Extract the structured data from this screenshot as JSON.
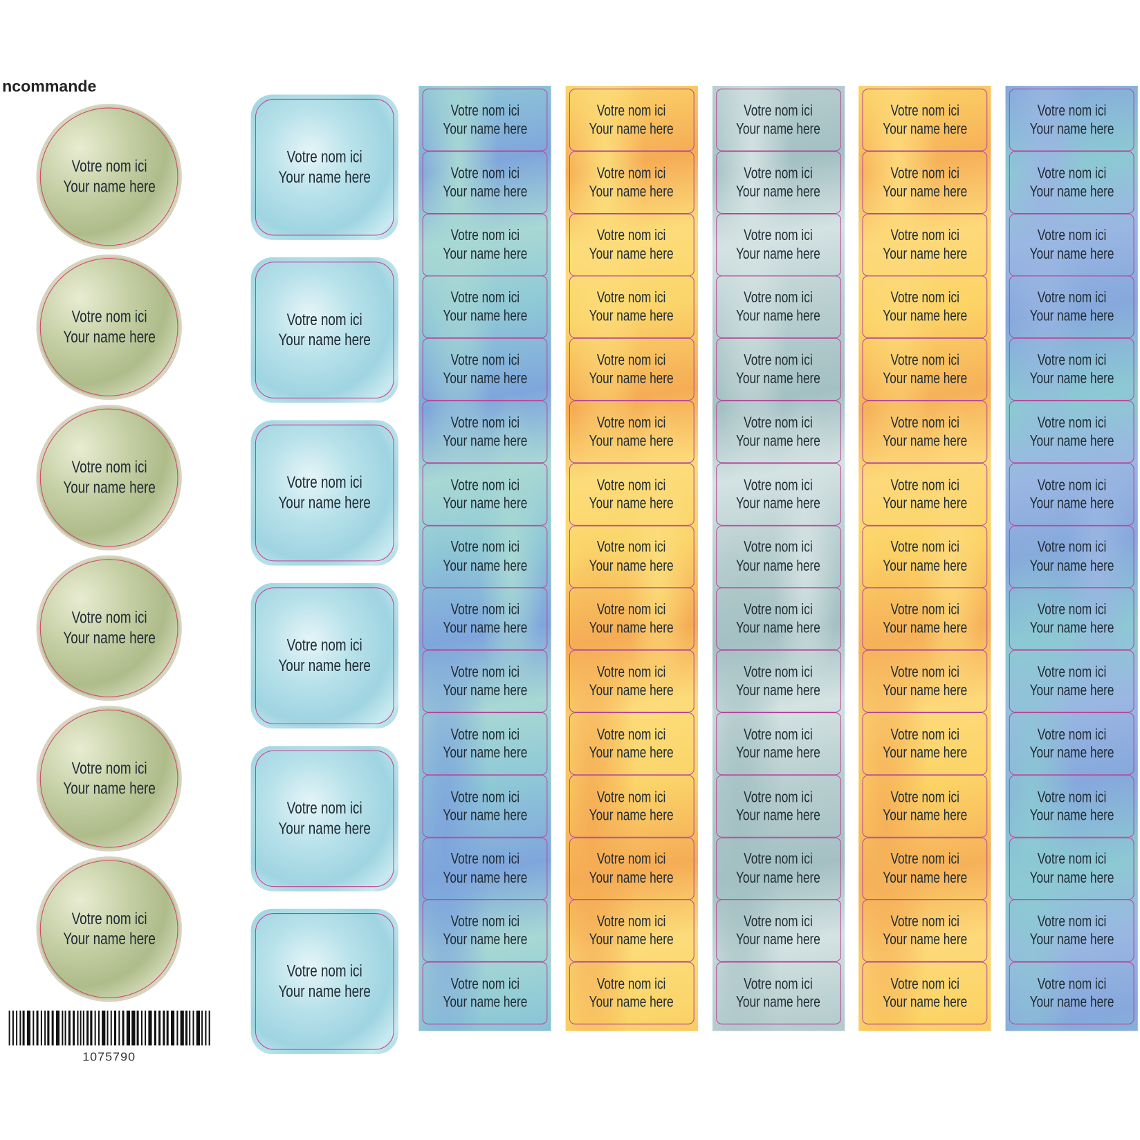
{
  "order_label": "ncommande",
  "label_text": {
    "line1": "Votre nom ici",
    "line2": "Your name here"
  },
  "circles": {
    "label_count": 6,
    "color": "#c4cea3"
  },
  "squares": {
    "label_count": 6,
    "color": "#b7e1ea"
  },
  "strips": [
    {
      "label_count": 15,
      "colors": [
        "#8fc9d6",
        "#7fa6dc",
        "#a8d8d4"
      ]
    },
    {
      "label_count": 15,
      "colors": [
        "#fbd56a",
        "#f5ac55",
        "#fcdc7a"
      ]
    },
    {
      "label_count": 15,
      "colors": [
        "#b9cfd0",
        "#a3c0c3",
        "#d4e2e2"
      ]
    },
    {
      "label_count": 15,
      "colors": [
        "#fcd466",
        "#f6b159",
        "#fdd97a"
      ]
    },
    {
      "label_count": 15,
      "colors": [
        "#86a8dc",
        "#8cc9d3",
        "#9ab6e2"
      ]
    }
  ],
  "cut_line_color": "#c9418d",
  "barcode": {
    "number": "1075790"
  }
}
